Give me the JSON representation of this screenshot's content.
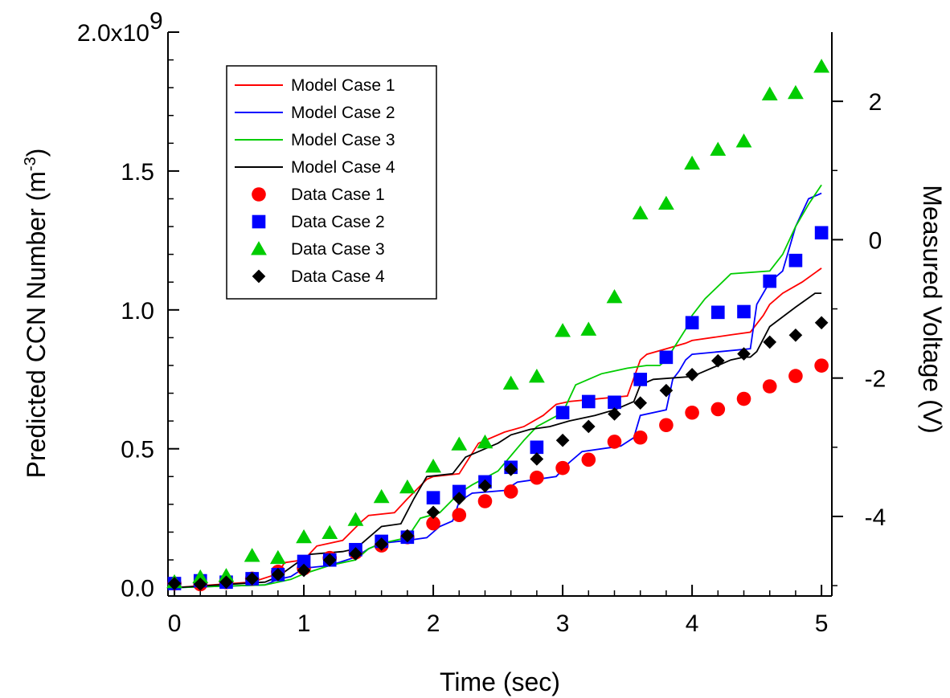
{
  "chart_data": {
    "type": "line",
    "title": "",
    "xlabel": "Time (sec)",
    "ylabel": "Predicted CCN Number (m",
    "ylabel_superscript": "-3",
    "ylabel_suffix": ")",
    "y2label": "Measured Voltage (V)",
    "xlim": [
      -0.05,
      5.08
    ],
    "ylim": [
      -30000000.0,
      2000000000.0
    ],
    "y2lim": [
      -5.15,
      3.0
    ],
    "x_ticks": [
      {
        "value": 0,
        "label": "0"
      },
      {
        "value": 1,
        "label": "1"
      },
      {
        "value": 2,
        "label": "2"
      },
      {
        "value": 3,
        "label": "3"
      },
      {
        "value": 4,
        "label": "4"
      },
      {
        "value": 5,
        "label": "5"
      }
    ],
    "y_ticks": [
      {
        "value": 0,
        "label": "0.0"
      },
      {
        "value": 500000000,
        "label": "0.5"
      },
      {
        "value": 1000000000,
        "label": "1.0"
      },
      {
        "value": 1500000000,
        "label": "1.5"
      },
      {
        "value": 2000000000,
        "label": "2.0x10"
      }
    ],
    "y_top_exponent": "9",
    "y2_ticks": [
      {
        "value": -4,
        "label": "-4"
      },
      {
        "value": -2,
        "label": "-2"
      },
      {
        "value": 0,
        "label": "0"
      },
      {
        "value": 2,
        "label": "2"
      }
    ],
    "grid": false,
    "legend_position": "top-left",
    "model_series": [
      {
        "name": "Model Case 1",
        "color": "#ff0000",
        "x": [
          0,
          0.6,
          0.8,
          0.85,
          1.0,
          1.1,
          1.3,
          1.45,
          1.5,
          1.7,
          1.8,
          1.95,
          2.0,
          2.2,
          2.35,
          2.55,
          2.7,
          2.85,
          2.95,
          3.05,
          3.5,
          3.6,
          3.65,
          3.8,
          3.95,
          4.0,
          4.3,
          4.45,
          4.55,
          4.6,
          4.7,
          4.85,
          5.0
        ],
        "y": [
          0.0,
          20000000.0,
          50000000.0,
          90000000.0,
          100000000.0,
          150000000.0,
          170000000.0,
          240000000.0,
          260000000.0,
          270000000.0,
          320000000.0,
          390000000.0,
          400000000.0,
          410000000.0,
          520000000.0,
          560000000.0,
          580000000.0,
          620000000.0,
          660000000.0,
          670000000.0,
          690000000.0,
          820000000.0,
          840000000.0,
          860000000.0,
          880000000.0,
          890000000.0,
          910000000.0,
          920000000.0,
          980000000.0,
          1020000000.0,
          1060000000.0,
          1100000000.0,
          1150000000.0
        ]
      },
      {
        "name": "Model Case 2",
        "color": "#0000ff",
        "x": [
          0,
          0.7,
          0.8,
          0.9,
          1.0,
          1.2,
          1.4,
          1.5,
          1.6,
          1.8,
          1.95,
          2.05,
          2.15,
          2.2,
          2.3,
          2.55,
          2.65,
          2.8,
          2.95,
          3.05,
          3.15,
          3.45,
          3.55,
          3.6,
          3.8,
          3.85,
          3.9,
          3.95,
          4.0,
          4.45,
          4.5,
          4.6,
          4.7,
          4.8,
          4.9,
          5.0
        ],
        "y": [
          0.0,
          10000000.0,
          30000000.0,
          40000000.0,
          70000000.0,
          80000000.0,
          110000000.0,
          140000000.0,
          160000000.0,
          170000000.0,
          180000000.0,
          220000000.0,
          240000000.0,
          310000000.0,
          340000000.0,
          350000000.0,
          380000000.0,
          390000000.0,
          400000000.0,
          450000000.0,
          490000000.0,
          510000000.0,
          540000000.0,
          620000000.0,
          640000000.0,
          750000000.0,
          780000000.0,
          820000000.0,
          840000000.0,
          860000000.0,
          1020000000.0,
          1100000000.0,
          1140000000.0,
          1300000000.0,
          1400000000.0,
          1420000000.0
        ]
      },
      {
        "name": "Model Case 3",
        "color": "#00cc00",
        "x": [
          0,
          0.7,
          0.9,
          1.0,
          1.2,
          1.4,
          1.5,
          1.6,
          1.8,
          1.9,
          2.05,
          2.2,
          2.3,
          2.5,
          2.7,
          2.8,
          3.0,
          3.1,
          3.3,
          3.4,
          3.5,
          3.65,
          3.75,
          3.8,
          3.95,
          4.0,
          4.1,
          4.3,
          4.6,
          4.7,
          4.8,
          4.9,
          5.0
        ],
        "y": [
          0.0,
          10000000.0,
          30000000.0,
          50000000.0,
          80000000.0,
          100000000.0,
          140000000.0,
          160000000.0,
          180000000.0,
          250000000.0,
          270000000.0,
          340000000.0,
          370000000.0,
          420000000.0,
          530000000.0,
          580000000.0,
          630000000.0,
          730000000.0,
          770000000.0,
          780000000.0,
          790000000.0,
          800000000.0,
          800000000.0,
          820000000.0,
          930000000.0,
          980000000.0,
          1040000000.0,
          1130000000.0,
          1140000000.0,
          1200000000.0,
          1300000000.0,
          1380000000.0,
          1450000000.0
        ]
      },
      {
        "name": "Model Case 4",
        "color": "#000000",
        "x": [
          0,
          0.7,
          0.8,
          0.95,
          1.05,
          1.3,
          1.4,
          1.6,
          1.75,
          1.85,
          1.95,
          2.15,
          2.25,
          2.5,
          2.6,
          2.75,
          2.9,
          3.05,
          3.25,
          3.4,
          3.55,
          3.6,
          3.7,
          4.0,
          4.3,
          4.4,
          4.45,
          4.5,
          4.6,
          4.8,
          4.95,
          5.0
        ],
        "y": [
          0.0,
          20000000.0,
          40000000.0,
          90000000.0,
          120000000.0,
          130000000.0,
          140000000.0,
          220000000.0,
          230000000.0,
          320000000.0,
          400000000.0,
          410000000.0,
          470000000.0,
          520000000.0,
          550000000.0,
          570000000.0,
          580000000.0,
          600000000.0,
          620000000.0,
          640000000.0,
          670000000.0,
          730000000.0,
          750000000.0,
          760000000.0,
          820000000.0,
          830000000.0,
          830000000.0,
          850000000.0,
          940000000.0,
          1010000000.0,
          1060000000.0,
          1060000000.0
        ]
      }
    ],
    "data_series": [
      {
        "name": "Data Case 1",
        "marker": "circle",
        "color": "#ff0000",
        "x": [
          0,
          0.2,
          0.4,
          0.6,
          0.8,
          1.0,
          1.2,
          1.4,
          1.6,
          1.8,
          2.0,
          2.2,
          2.4,
          2.6,
          2.8,
          3.0,
          3.2,
          3.4,
          3.6,
          3.8,
          4.0,
          4.2,
          4.4,
          4.6,
          4.8,
          5.0
        ],
        "y": [
          -4.97,
          -4.98,
          -4.95,
          -4.9,
          -4.8,
          -4.75,
          -4.6,
          -4.52,
          -4.42,
          -4.3,
          -4.1,
          -3.98,
          -3.78,
          -3.64,
          -3.44,
          -3.3,
          -3.18,
          -2.92,
          -2.86,
          -2.68,
          -2.5,
          -2.45,
          -2.3,
          -2.12,
          -1.97,
          -1.82
        ]
      },
      {
        "name": "Data Case 2",
        "marker": "square",
        "color": "#0000ff",
        "x": [
          0,
          0.2,
          0.4,
          0.6,
          0.8,
          1.0,
          1.2,
          1.4,
          1.6,
          1.8,
          2.0,
          2.2,
          2.4,
          2.6,
          2.8,
          3.0,
          3.2,
          3.4,
          3.6,
          3.8,
          4.0,
          4.2,
          4.4,
          4.6,
          4.8,
          5.0
        ],
        "y": [
          -4.97,
          -4.93,
          -4.95,
          -4.9,
          -4.84,
          -4.65,
          -4.63,
          -4.48,
          -4.36,
          -4.3,
          -3.73,
          -3.64,
          -3.5,
          -3.29,
          -3.0,
          -2.5,
          -2.34,
          -2.35,
          -2.02,
          -1.7,
          -1.2,
          -1.05,
          -1.04,
          -0.6,
          -0.3,
          0.1
        ]
      },
      {
        "name": "Data Case 3",
        "marker": "triangle",
        "color": "#00cc00",
        "x": [
          0,
          0.2,
          0.4,
          0.6,
          0.8,
          1.0,
          1.2,
          1.4,
          1.6,
          1.8,
          2.0,
          2.2,
          2.4,
          2.6,
          2.8,
          3.0,
          3.2,
          3.4,
          3.6,
          3.8,
          4.0,
          4.2,
          4.4,
          4.6,
          4.8,
          5.0
        ],
        "y": [
          -4.95,
          -4.88,
          -4.86,
          -4.57,
          -4.6,
          -4.3,
          -4.24,
          -4.05,
          -3.72,
          -3.58,
          -3.28,
          -2.96,
          -2.93,
          -2.08,
          -1.98,
          -1.32,
          -1.3,
          -0.83,
          0.38,
          0.52,
          1.1,
          1.3,
          1.42,
          2.1,
          2.12,
          2.5
        ]
      },
      {
        "name": "Data Case 4",
        "marker": "diamond",
        "color": "#000000",
        "x": [
          0,
          0.2,
          0.4,
          0.6,
          0.8,
          1.0,
          1.2,
          1.4,
          1.6,
          1.8,
          2.0,
          2.2,
          2.4,
          2.6,
          2.8,
          3.0,
          3.2,
          3.4,
          3.6,
          3.8,
          4.0,
          4.2,
          4.4,
          4.6,
          4.8,
          5.0
        ],
        "y": [
          -4.97,
          -4.98,
          -4.95,
          -4.9,
          -4.84,
          -4.78,
          -4.63,
          -4.54,
          -4.4,
          -4.28,
          -3.94,
          -3.74,
          -3.56,
          -3.32,
          -3.17,
          -2.9,
          -2.7,
          -2.52,
          -2.36,
          -2.18,
          -1.95,
          -1.75,
          -1.65,
          -1.48,
          -1.38,
          -1.2
        ]
      }
    ]
  }
}
